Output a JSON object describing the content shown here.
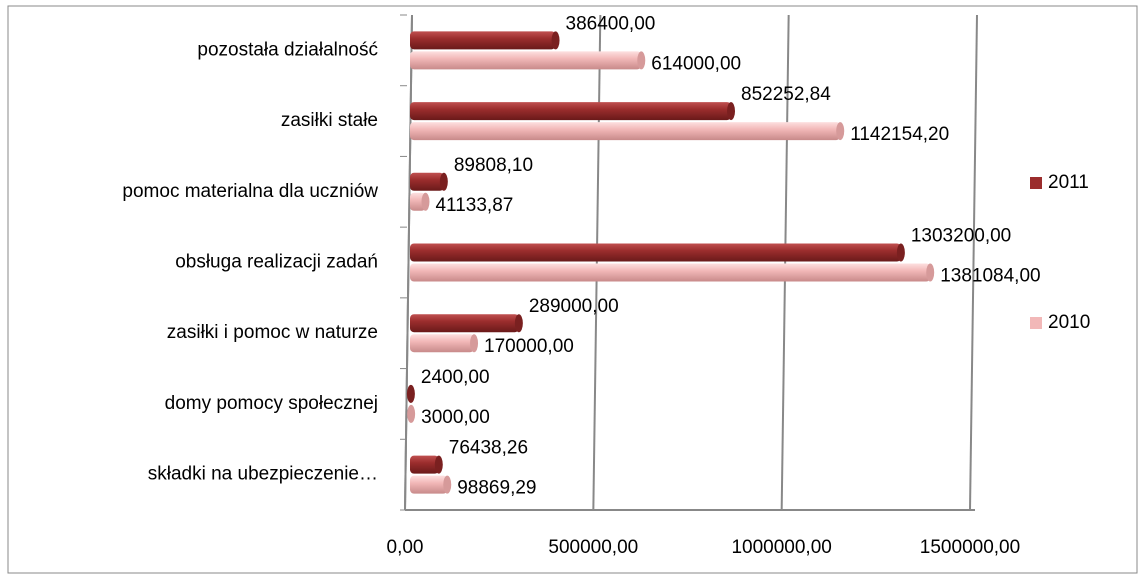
{
  "chart_data": {
    "type": "bar",
    "orientation": "horizontal",
    "categories": [
      "pozostała działalność",
      "zasiłki stałe",
      "pomoc materialna dla uczniów",
      "obsługa realizacji zadań",
      "zasiłki i pomoc w naturze",
      "domy pomocy społecznej",
      "składki na ubezpieczenie…"
    ],
    "series": [
      {
        "name": "2011",
        "color": "#9b2d2d",
        "values": [
          386400,
          852252.84,
          89808.1,
          1303200,
          289000,
          2400,
          76438.26
        ],
        "value_labels": [
          "386400,00",
          "852252,84",
          "89808,10",
          "1303200,00",
          "289000,00",
          "2400,00",
          "76438,26"
        ]
      },
      {
        "name": "2010",
        "color": "#f2b8b8",
        "values": [
          614000,
          1142154.2,
          41133.87,
          1381084,
          170000,
          3000,
          98869.29
        ],
        "value_labels": [
          "614000,00",
          "1142154,20",
          "41133,87",
          "1381084,00",
          "170000,00",
          "3000,00",
          "98869,29"
        ]
      }
    ],
    "xlim": [
      0,
      1500000
    ],
    "xticks": [
      {
        "value": 0,
        "label": "0,00"
      },
      {
        "value": 500000,
        "label": "500000,00"
      },
      {
        "value": 1000000,
        "label": "1000000,00"
      },
      {
        "value": 1500000,
        "label": "1500000,00"
      }
    ],
    "grid": true,
    "legend": "right"
  }
}
